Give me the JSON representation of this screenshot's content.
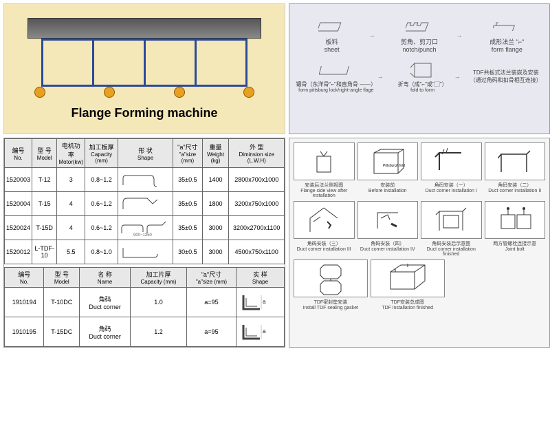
{
  "machine": {
    "title": "Flange Forming machine",
    "frame_color": "#2a4a9a",
    "wheel_color": "#e8a020",
    "bg_color": "#f5e8b8"
  },
  "process": {
    "bg_color": "#e8e8f0",
    "row1": [
      {
        "cn": "板料",
        "en": "sheet"
      },
      {
        "cn": "剪角、剪刀口",
        "en": "notch/punch"
      },
      {
        "cn": "成形法兰 \"⌐\"",
        "en": "form flange"
      }
    ],
    "row2": [
      {
        "cn": "镶骨（东洋骨\"⌐\"和直角骨 ——）",
        "en": "form pittsburg lock/right-angle flage"
      },
      {
        "cn": "折弯（成\"⌐\"或\"▢\"）",
        "en": "fold to form"
      },
      {
        "cn": "TDF共板式法兰装嵌及安装（通过角码和扣骨相互连接）",
        "en": ""
      }
    ]
  },
  "table1": {
    "headers": [
      {
        "cn": "编号",
        "en": "No."
      },
      {
        "cn": "型 号",
        "en": "Model"
      },
      {
        "cn": "电机功率",
        "en": "Motor(kw)"
      },
      {
        "cn": "加工板厚",
        "en": "Capacity (mm)"
      },
      {
        "cn": "形 状",
        "en": "Shape"
      },
      {
        "cn": "\"a\"尺寸",
        "en": "\"a\"size (mm)"
      },
      {
        "cn": "重量",
        "en": "Weight (kg)"
      },
      {
        "cn": "外 型",
        "en": "Diminsion size (L.W.H)"
      }
    ],
    "rows": [
      [
        "1520003",
        "T-12",
        "3",
        "0.8~1.2",
        "",
        "35±0.5",
        "1400",
        "2800x700x1000"
      ],
      [
        "1520004",
        "T-15",
        "4",
        "0.6~1.2",
        "",
        "35±0.5",
        "1800",
        "3200x750x1000"
      ],
      [
        "1520024",
        "T-15D",
        "4",
        "0.6~1.2",
        "",
        "35±0.5",
        "3000",
        "3200x2700x1100"
      ],
      [
        "1520012",
        "L-TDF-10",
        "5.5",
        "0.8~1.0",
        "",
        "30±0.5",
        "3000",
        "4500x750x1100"
      ]
    ]
  },
  "table2": {
    "headers": [
      {
        "cn": "编号",
        "en": "No."
      },
      {
        "cn": "型 号",
        "en": "Model"
      },
      {
        "cn": "名 称",
        "en": "Name"
      },
      {
        "cn": "加工片厚",
        "en": "Capacity (mm)"
      },
      {
        "cn": "\"a\"尺寸",
        "en": "\"a\"size (mm)"
      },
      {
        "cn": "实 样",
        "en": "Shape"
      }
    ],
    "rows": [
      [
        "1910194",
        "T-10DC",
        "角码\nDuct corner",
        "1.0",
        "a=95",
        ""
      ],
      [
        "1910195",
        "T-15DC",
        "角码\nDuct corner",
        "1.2",
        "a=95",
        ""
      ]
    ]
  },
  "install": {
    "cells": [
      {
        "cn": "安装后法兰侧视图",
        "en": "Flange side view after installation"
      },
      {
        "cn": "安装前",
        "en": "Before installation"
      },
      {
        "cn": "角码安装（一）",
        "en": "Duct corner installation I"
      },
      {
        "cn": "角码安装（二）",
        "en": "Duct corner installation II"
      },
      {
        "cn": "角码安装（三）",
        "en": "Duct corner installation III"
      },
      {
        "cn": "角码安装（四）",
        "en": "Duct corner installation IV"
      },
      {
        "cn": "角码安装后示意图",
        "en": "Duct corner installation finished"
      },
      {
        "cn": "两方管螺栓连接示意",
        "en": "Joint bolt"
      },
      {
        "cn": "TDF密封垫安装",
        "en": "Install TDF sealing gasket"
      },
      {
        "cn": "TDF安装总成图",
        "en": "TDF installation finished"
      }
    ]
  }
}
